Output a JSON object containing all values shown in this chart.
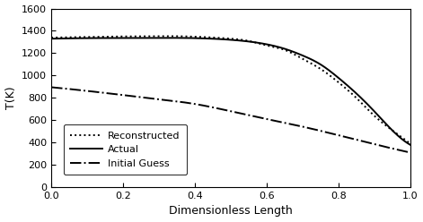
{
  "title": "",
  "xlabel": "Dimensionless Length",
  "ylabel": "T(K)",
  "xlim": [
    0.0,
    1.0
  ],
  "ylim": [
    0,
    1600
  ],
  "yticks": [
    0,
    200,
    400,
    600,
    800,
    1000,
    1200,
    1400,
    1600
  ],
  "xticks": [
    0.0,
    0.2,
    0.4,
    0.6,
    0.8,
    1.0
  ],
  "background_color": "#ffffff",
  "legend_entries": [
    "Reconstructed",
    "Actual",
    "Initial Guess"
  ],
  "line_color": "#000000",
  "actual_x": [
    0.0,
    0.05,
    0.1,
    0.2,
    0.3,
    0.35,
    0.4,
    0.5,
    0.6,
    0.65,
    0.7,
    0.75,
    0.8,
    0.85,
    0.9,
    0.95,
    1.0
  ],
  "actual_y": [
    1330,
    1333,
    1335,
    1336,
    1337,
    1337,
    1335,
    1320,
    1280,
    1240,
    1180,
    1100,
    980,
    840,
    680,
    510,
    380
  ],
  "recon_x": [
    0.0,
    0.05,
    0.1,
    0.2,
    0.3,
    0.35,
    0.4,
    0.5,
    0.55,
    0.6,
    0.65,
    0.7,
    0.75,
    0.8,
    0.85,
    0.9,
    0.95,
    1.0
  ],
  "recon_y": [
    1340,
    1343,
    1346,
    1350,
    1352,
    1352,
    1348,
    1330,
    1310,
    1270,
    1230,
    1150,
    1060,
    940,
    800,
    640,
    510,
    390
  ],
  "initial_x": [
    0.0,
    0.1,
    0.2,
    0.3,
    0.4,
    0.5,
    0.6,
    0.7,
    0.8,
    0.9,
    1.0
  ],
  "initial_y": [
    895,
    862,
    825,
    787,
    745,
    680,
    610,
    542,
    465,
    385,
    310
  ]
}
